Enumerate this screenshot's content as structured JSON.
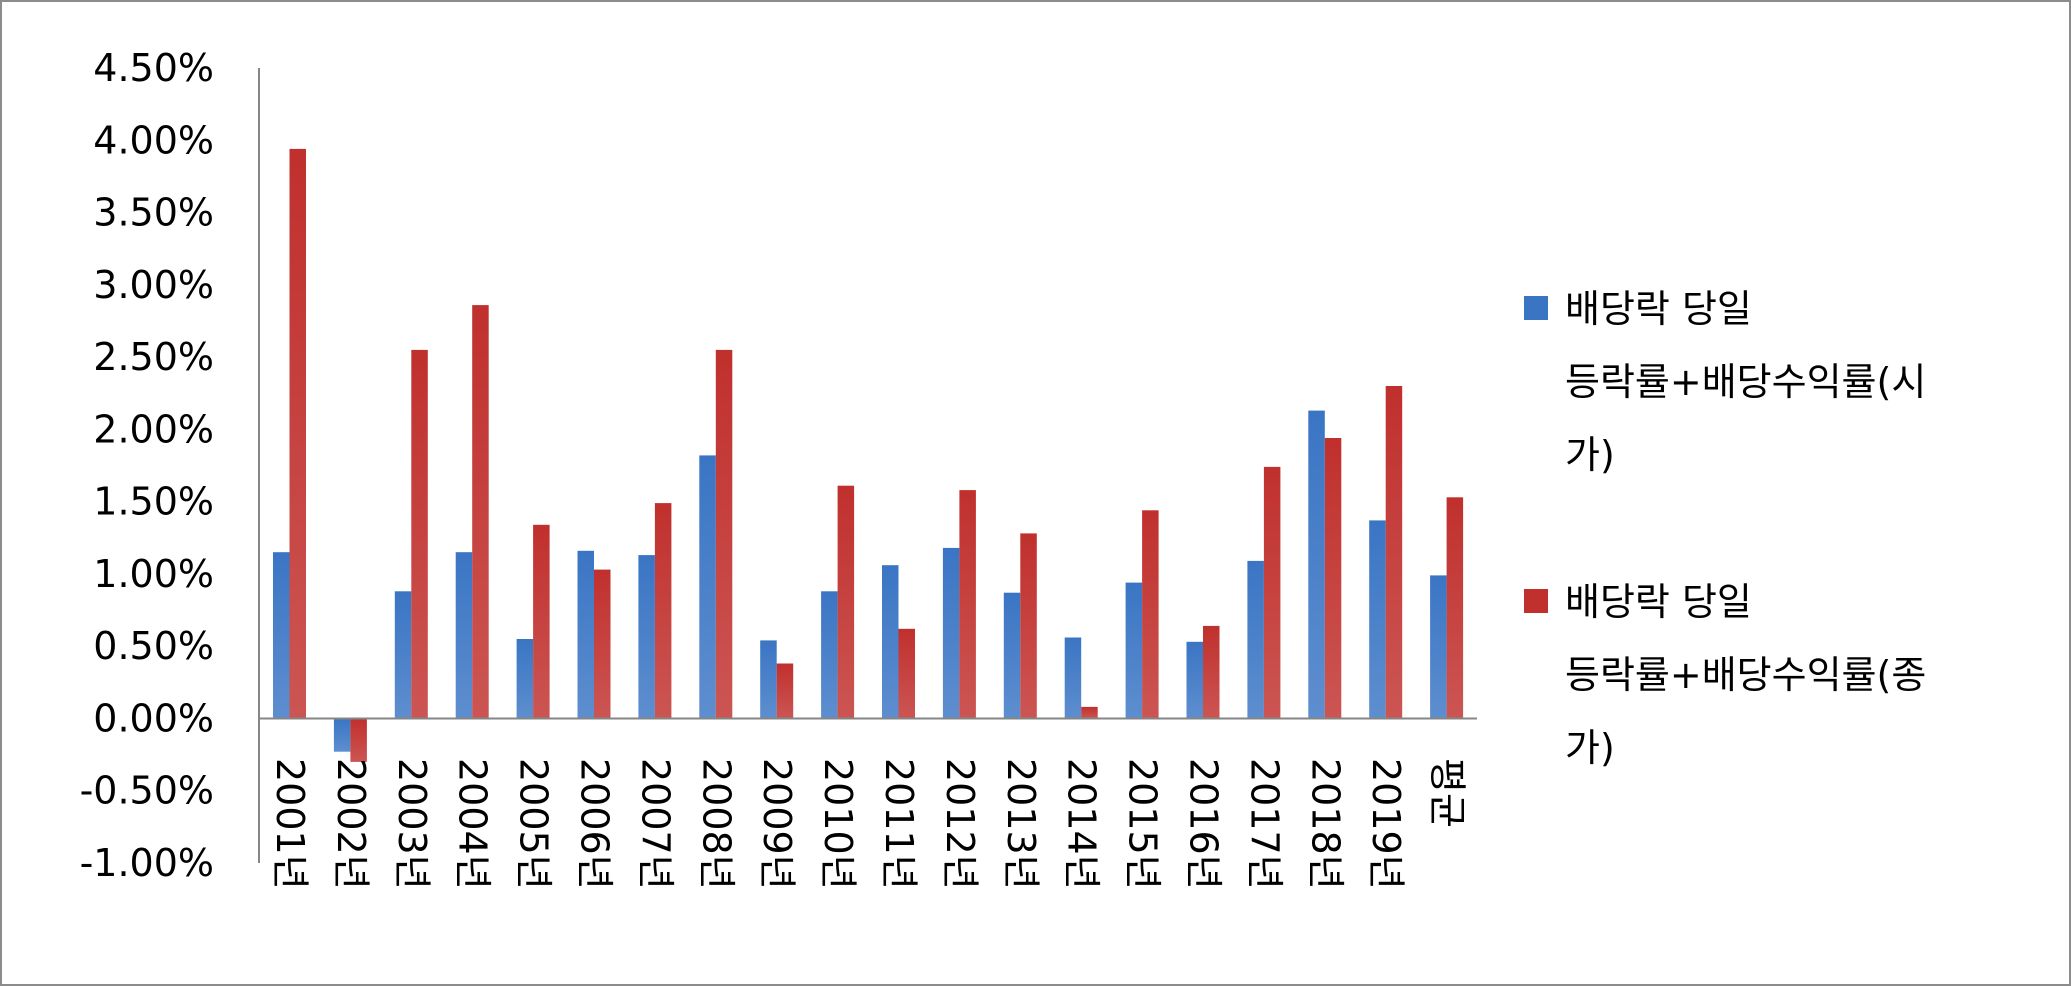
{
  "chart_data": {
    "type": "bar",
    "title": "",
    "xlabel": "",
    "ylabel": "",
    "ylim": [
      -1.0,
      4.5
    ],
    "y_tick_step": 0.5,
    "y_tick_labels": [
      "-1.00%",
      "-0.50%",
      "0.00%",
      "0.50%",
      "1.00%",
      "1.50%",
      "2.00%",
      "2.50%",
      "3.00%",
      "3.50%",
      "4.00%",
      "4.50%"
    ],
    "grid": false,
    "legend_position": "right",
    "categories": [
      "2001년",
      "2002년",
      "2003년",
      "2004년",
      "2005년",
      "2006년",
      "2007년",
      "2008년",
      "2009년",
      "2010년",
      "2011년",
      "2012년",
      "2013년",
      "2014년",
      "2015년",
      "2016년",
      "2017년",
      "2018년",
      "2019년",
      "평균"
    ],
    "series": [
      {
        "name": "배당락 당일 등락률+배당수익률(시가)",
        "legend_lines": [
          "배당락 당일",
          "등락률+배당수익률(시",
          "가)"
        ],
        "color": "#3a75c4",
        "values": [
          1.15,
          -0.23,
          0.88,
          1.15,
          0.55,
          1.16,
          1.13,
          1.82,
          0.54,
          0.88,
          1.06,
          1.18,
          0.87,
          0.56,
          0.94,
          0.53,
          1.09,
          2.13,
          1.37,
          0.99
        ]
      },
      {
        "name": "배당락 당일 등락률+배당수익률(종가)",
        "legend_lines": [
          "배당락 당일",
          "등락률+배당수익률(종",
          "가)"
        ],
        "color": "#c0302d",
        "values": [
          3.94,
          -0.3,
          2.55,
          2.86,
          1.34,
          1.03,
          1.49,
          2.55,
          0.38,
          1.61,
          0.62,
          1.58,
          1.28,
          0.08,
          1.44,
          0.64,
          1.74,
          1.94,
          2.3,
          1.53
        ]
      }
    ]
  }
}
